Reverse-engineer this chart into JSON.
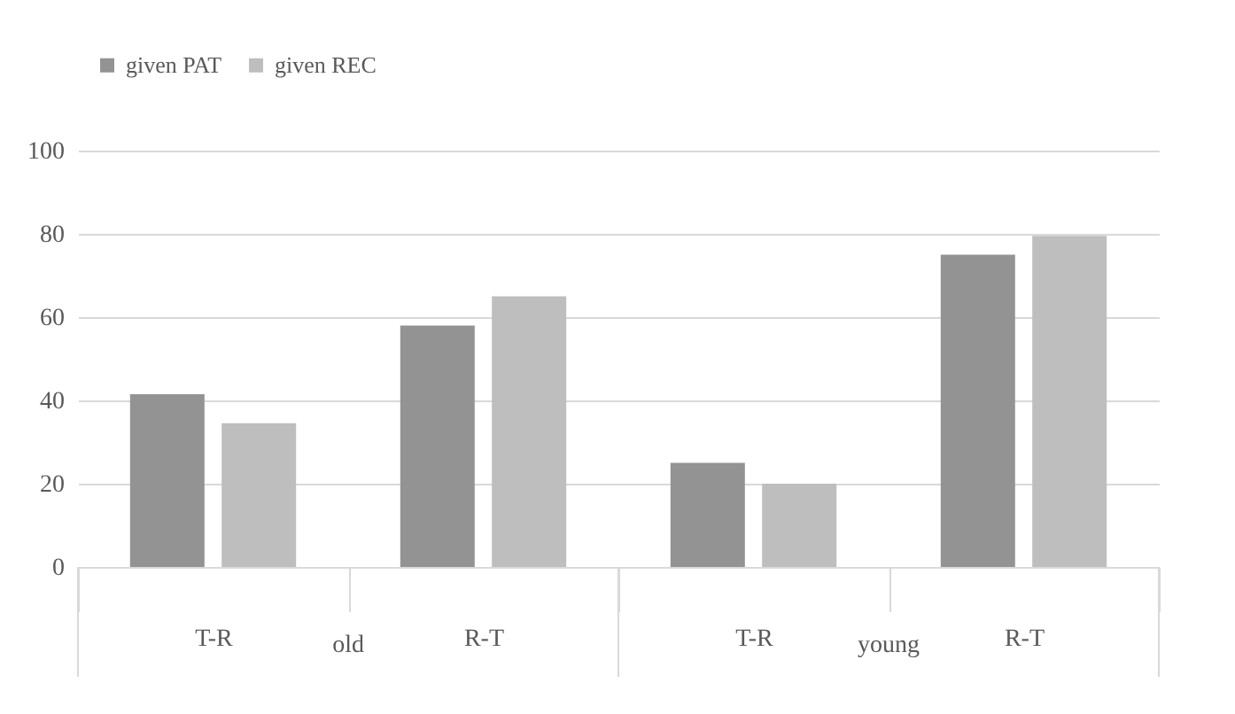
{
  "chart_data": {
    "type": "bar",
    "categories": [
      "T-R",
      "R-T",
      "T-R",
      "R-T"
    ],
    "series": [
      {
        "name": "given PAT",
        "color": "#939393",
        "values": [
          41.5,
          58,
          25,
          75
        ]
      },
      {
        "name": "given REC",
        "color": "#bebebe",
        "values": [
          34.5,
          65,
          20,
          79.5
        ]
      }
    ],
    "annotations": [
      "old",
      "young"
    ],
    "ylim": [
      0,
      100
    ],
    "yticks": [
      0,
      20,
      40,
      60,
      80,
      100
    ],
    "grid": "y",
    "legend": "top"
  }
}
